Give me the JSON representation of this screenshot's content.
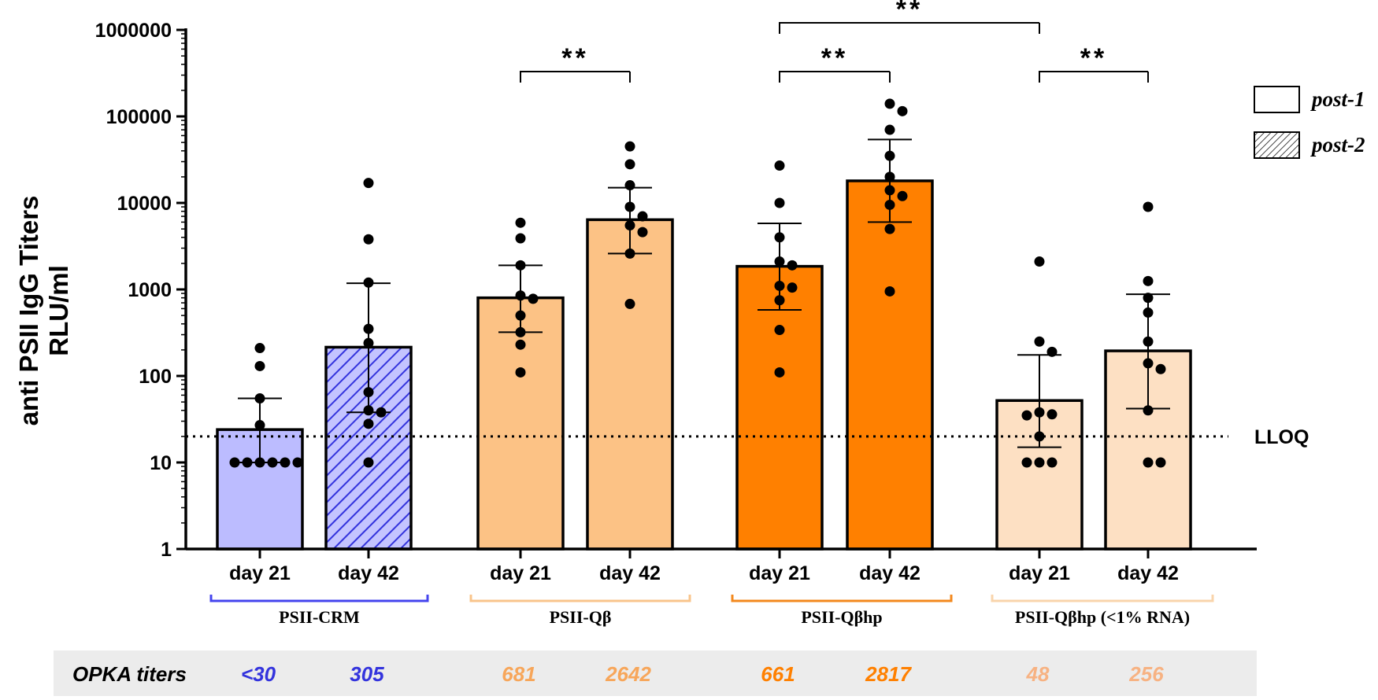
{
  "chart_data": {
    "type": "bar",
    "yscale": "log",
    "ylim": [
      1,
      1000000
    ],
    "ylabel_lines": [
      "anti PSII IgG Titers",
      "RLU/ml"
    ],
    "ytick_values": [
      1,
      10,
      100,
      1000,
      10000,
      100000,
      1000000
    ],
    "ytick_labels": [
      "1",
      "10",
      "100",
      "1000",
      "10000",
      "100000",
      "1000000"
    ],
    "lloq": {
      "value": 20,
      "label": "LLOQ"
    },
    "legend": [
      {
        "label": "post-1",
        "pattern": "solid"
      },
      {
        "label": "post-2",
        "pattern": "hatched"
      }
    ],
    "groups": [
      {
        "name": "PSII-CRM",
        "color": "#4444ee"
      },
      {
        "name": "PSII-Qβ",
        "color": "#f9c48b"
      },
      {
        "name": "PSII-Qβhp",
        "color": "#f3881d"
      },
      {
        "name": "PSII-Qβhp (<1% RNA)",
        "color": "#f9d4ab"
      }
    ],
    "bars": [
      {
        "group": 0,
        "label": "day 21",
        "mean": 24,
        "err_low": 10,
        "err_high": 55,
        "fill": "#bcbcff",
        "hatched": false,
        "points": [
          210,
          130,
          55,
          27,
          10,
          10,
          10,
          10,
          10,
          10
        ]
      },
      {
        "group": 0,
        "label": "day 42",
        "mean": 215,
        "err_low": 38,
        "err_high": 1180,
        "fill": "#bcbcff",
        "hatched": true,
        "hatch_color": "#3333dd",
        "points": [
          17000,
          3800,
          1200,
          350,
          240,
          65,
          40,
          38,
          28,
          10
        ]
      },
      {
        "group": 1,
        "label": "day 21",
        "mean": 800,
        "err_low": 320,
        "err_high": 1900,
        "fill": "#fcc285",
        "hatched": false,
        "points": [
          5900,
          3900,
          1900,
          850,
          780,
          500,
          320,
          230,
          110
        ]
      },
      {
        "group": 1,
        "label": "day 42",
        "mean": 6400,
        "err_low": 2600,
        "err_high": 15000,
        "fill": "#fcc285",
        "hatched": false,
        "points": [
          45000,
          28000,
          16000,
          9000,
          7000,
          5500,
          4600,
          2600,
          680
        ]
      },
      {
        "group": 2,
        "label": "day 21",
        "mean": 1850,
        "err_low": 580,
        "err_high": 5800,
        "fill": "#ff8000",
        "hatched": false,
        "points": [
          27000,
          10000,
          4000,
          2100,
          1900,
          1100,
          1050,
          750,
          340,
          110
        ]
      },
      {
        "group": 2,
        "label": "day 42",
        "mean": 18000,
        "err_low": 6000,
        "err_high": 54000,
        "fill": "#ff8000",
        "hatched": false,
        "points": [
          140000,
          115000,
          70000,
          35000,
          20000,
          14000,
          12000,
          9500,
          5000,
          950
        ]
      },
      {
        "group": 3,
        "label": "day 21",
        "mean": 52,
        "err_low": 15,
        "err_high": 175,
        "fill": "#fde0c3",
        "hatched": false,
        "points": [
          2100,
          250,
          190,
          38,
          36,
          35,
          20,
          10,
          10,
          10
        ]
      },
      {
        "group": 3,
        "label": "day 42",
        "mean": 195,
        "err_low": 42,
        "err_high": 880,
        "fill": "#fde0c3",
        "hatched": false,
        "points": [
          9000,
          1250,
          800,
          540,
          250,
          140,
          120,
          40,
          10,
          10
        ]
      }
    ],
    "significance": [
      {
        "from_bar": 2,
        "to_bar": 3,
        "label": "**",
        "level": 0
      },
      {
        "from_bar": 4,
        "to_bar": 5,
        "label": "**",
        "level": 0
      },
      {
        "from_bar": 6,
        "to_bar": 7,
        "label": "**",
        "level": 0
      },
      {
        "from_bar": 4,
        "to_bar": 6,
        "label": "**",
        "level": 1
      }
    ]
  },
  "opka": {
    "title": "OPKA titers",
    "values": [
      {
        "text": "<30",
        "color": "#3333dd"
      },
      {
        "text": "305",
        "color": "#3333dd"
      },
      {
        "text": "681",
        "color": "#f7a65a"
      },
      {
        "text": "2642",
        "color": "#f7a65a"
      },
      {
        "text": "661",
        "color": "#ff8000"
      },
      {
        "text": "2817",
        "color": "#ff8000"
      },
      {
        "text": "48",
        "color": "#f7b282"
      },
      {
        "text": "256",
        "color": "#f7b282"
      }
    ]
  }
}
